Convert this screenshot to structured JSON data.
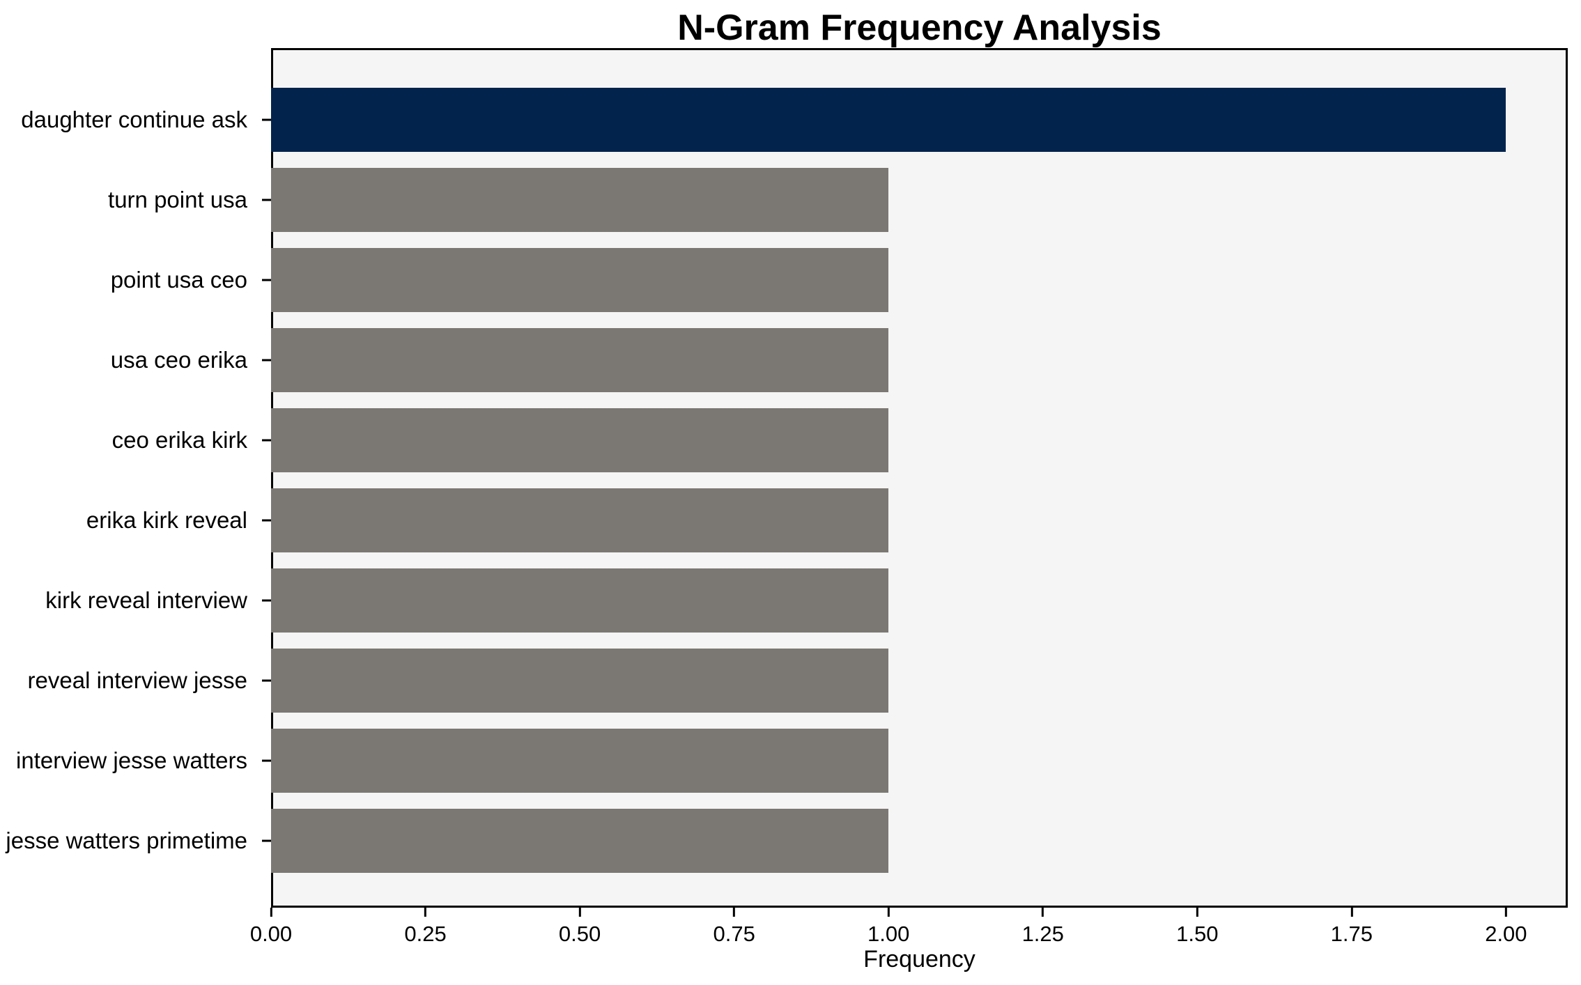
{
  "chart_data": {
    "type": "bar",
    "orientation": "horizontal",
    "title": "N-Gram Frequency Analysis",
    "xlabel": "Frequency",
    "ylabel": "",
    "categories": [
      "daughter continue ask",
      "turn point usa",
      "point usa ceo",
      "usa ceo erika",
      "ceo erika kirk",
      "erika kirk reveal",
      "kirk reveal interview",
      "reveal interview jesse",
      "interview jesse watters",
      "jesse watters primetime"
    ],
    "values": [
      2,
      1,
      1,
      1,
      1,
      1,
      1,
      1,
      1,
      1
    ],
    "xlim": [
      0,
      2.1
    ],
    "xticks": [
      {
        "value": 0.0,
        "label": "0.00"
      },
      {
        "value": 0.25,
        "label": "0.25"
      },
      {
        "value": 0.5,
        "label": "0.50"
      },
      {
        "value": 0.75,
        "label": "0.75"
      },
      {
        "value": 1.0,
        "label": "1.00"
      },
      {
        "value": 1.25,
        "label": "1.25"
      },
      {
        "value": 1.5,
        "label": "1.50"
      },
      {
        "value": 1.75,
        "label": "1.75"
      },
      {
        "value": 2.0,
        "label": "2.00"
      }
    ],
    "grid": false,
    "legend": false,
    "bar_height_fraction": 0.8,
    "colors": {
      "highlight_bar": "#02234c",
      "default_bar": "#7b7873",
      "highlight_index": 0,
      "plot_background": "#f5f5f5",
      "figure_background": "#ffffff",
      "axis": "#000000",
      "text": "#000000"
    }
  }
}
